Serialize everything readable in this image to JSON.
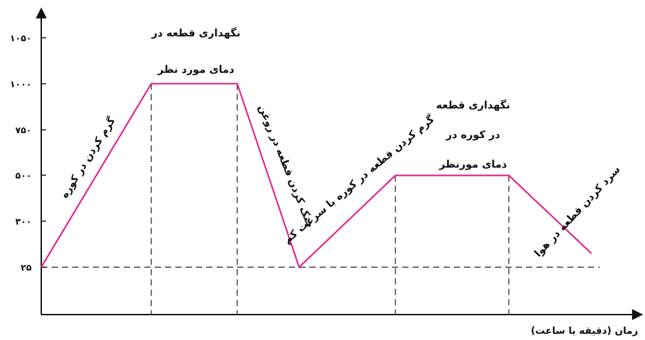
{
  "chart_data": {
    "type": "line",
    "xlabel": "زمان (دقیقه یا ساعت)",
    "ylabel": "",
    "title": "",
    "y_ticks": [
      "۲۵",
      "۳۰۰",
      "۵۰۰",
      "۷۵۰",
      "۱۰۰۰",
      "۱۰۵۰"
    ],
    "series": [
      {
        "points": [
          {
            "x": 0,
            "y": 0
          },
          {
            "x": 16,
            "y": 4
          },
          {
            "x": 28.5,
            "y": 4
          },
          {
            "x": 37.5,
            "y": 0
          },
          {
            "x": 51.5,
            "y": 2
          },
          {
            "x": 68,
            "y": 2
          },
          {
            "x": 80,
            "y": 0.3
          }
        ]
      }
    ],
    "dashed_guides_x": [
      16,
      28.5,
      51.5,
      68
    ],
    "baseline_y": 0,
    "annotations": [
      {
        "id": "hold1_line1",
        "text": "نگهداری قطعه در"
      },
      {
        "id": "hold1_line2",
        "text": "دمای مورد نظر"
      },
      {
        "id": "heat1",
        "text": "گرم کردن در کوره"
      },
      {
        "id": "quench",
        "text": "خنک کردن قطعه در روغن"
      },
      {
        "id": "heat2",
        "text": "گرم کردن قطعه در کوره با سرعت کم"
      },
      {
        "id": "hold2_line1",
        "text": "نگهداری قطعه"
      },
      {
        "id": "hold2_line2",
        "text": "در کوره در"
      },
      {
        "id": "hold2_line3",
        "text": "دمای مورنظر"
      },
      {
        "id": "aircool",
        "text": "سرد کردن قطعه در هوا"
      }
    ],
    "line_color": "#e0218a",
    "axis_color": "#111111"
  }
}
